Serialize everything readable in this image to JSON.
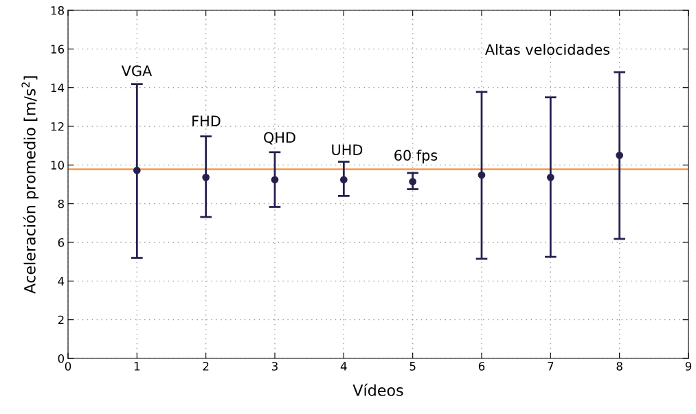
{
  "chart_data": {
    "type": "scatter",
    "xlabel": "Vídeos",
    "ylabel": "Aceleración promedio [m/s$^{2}$]",
    "x": [
      1,
      2,
      3,
      4,
      5,
      6,
      7,
      8
    ],
    "series": [
      {
        "color": "#25214f",
        "values": [
          9.72,
          9.36,
          9.24,
          9.24,
          9.14,
          9.48,
          9.36,
          10.5
        ],
        "errors": [
          [
            5.2,
            14.18
          ],
          [
            7.31,
            11.48
          ],
          [
            7.83,
            10.66
          ],
          [
            8.4,
            10.17
          ],
          [
            8.75,
            9.59
          ],
          [
            5.15,
            13.78
          ],
          [
            5.25,
            13.5
          ],
          [
            6.18,
            14.8
          ]
        ]
      }
    ],
    "xlim": [
      0,
      9
    ],
    "xticks": [
      0,
      1,
      2,
      3,
      4,
      5,
      6,
      7,
      8,
      9
    ],
    "ylim": [
      0,
      18
    ],
    "yticks": [
      0,
      2,
      4,
      6,
      8,
      10,
      12,
      14,
      16,
      18
    ],
    "grid": true,
    "marker": "circle",
    "ref_lines": [
      {
        "axis": "y",
        "value": 9.78,
        "color": "#f5a05a"
      }
    ],
    "annotations": [
      "VGA",
      "FHD",
      "QHD",
      "UHD",
      "60 fps",
      "Altas velocidades"
    ]
  }
}
